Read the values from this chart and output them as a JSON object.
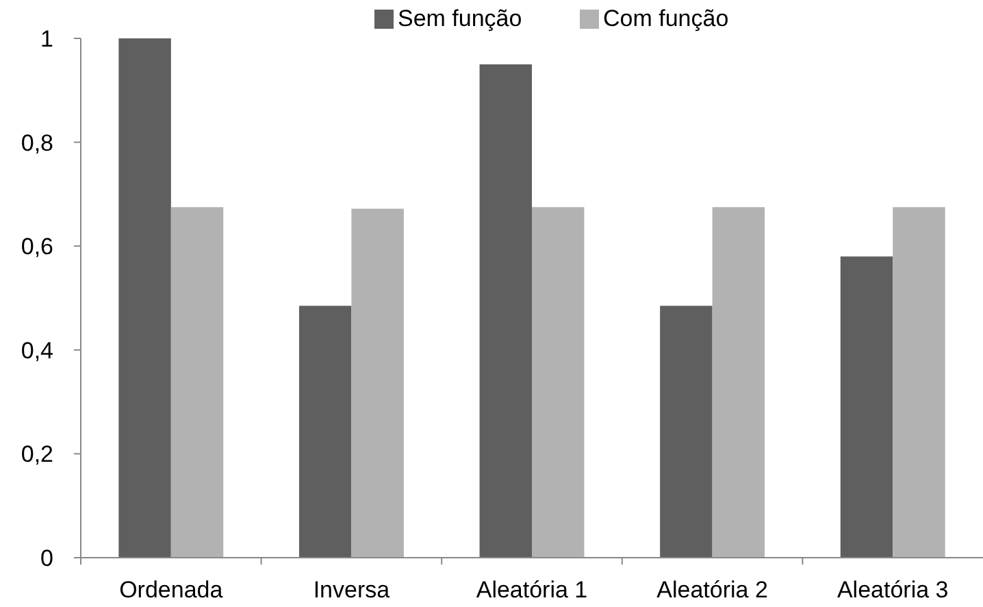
{
  "chart_data": {
    "type": "bar",
    "categories": [
      "Ordenada",
      "Inversa",
      "Aleatória 1",
      "Aleatória 2",
      "Aleatória 3"
    ],
    "series": [
      {
        "name": "Sem função",
        "color": "#5f5f5f",
        "values": [
          1,
          0.485,
          0.95,
          0.485,
          0.58
        ]
      },
      {
        "name": "Com função",
        "color": "#b2b2b2",
        "values": [
          0.675,
          0.672,
          0.675,
          0.675,
          0.675
        ]
      }
    ],
    "ylim": [
      0,
      1
    ],
    "yticks": [
      0,
      {
        "value": 0.2,
        "label": "0,2"
      },
      {
        "value": 0.4,
        "label": "0,4"
      },
      {
        "value": 0.6,
        "label": "0,6"
      },
      {
        "value": 0.8,
        "label": "0,8"
      },
      1
    ],
    "grid": false,
    "legend": "top"
  }
}
